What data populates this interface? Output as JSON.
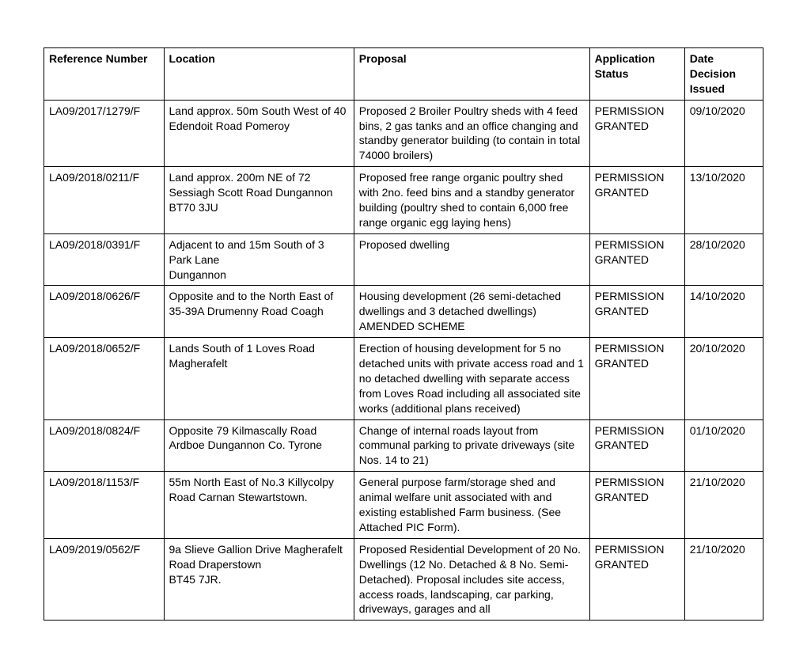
{
  "table": {
    "columns": [
      "Reference Number",
      "Location",
      "Proposal",
      "Application Status",
      "Date Decision Issued"
    ],
    "rows": [
      {
        "ref": "LA09/2017/1279/F",
        "loc": "Land approx. 50m South West of 40 Edendoit Road Pomeroy",
        "prop": "Proposed 2 Broiler Poultry sheds with 4 feed bins, 2 gas tanks and an office changing and standby generator building (to contain in total 74000 broilers)",
        "status": "PERMISSION GRANTED",
        "date": "09/10/2020"
      },
      {
        "ref": "LA09/2018/0211/F",
        "loc": "Land approx. 200m NE of 72 Sessiagh Scott Road Dungannon\nBT70 3JU",
        "prop": "Proposed free range organic poultry shed with 2no. feed bins and a standby generator building (poultry shed to contain 6,000 free range organic egg laying hens)",
        "status": "PERMISSION GRANTED",
        "date": "13/10/2020"
      },
      {
        "ref": "LA09/2018/0391/F",
        "loc": "Adjacent to and 15m South of 3 Park Lane\nDungannon",
        "prop": "Proposed dwelling",
        "status": "PERMISSION GRANTED",
        "date": "28/10/2020"
      },
      {
        "ref": "LA09/2018/0626/F",
        "loc": "Opposite and to the North East of 35-39A Drumenny Road Coagh",
        "prop": "Housing development (26 semi-detached dwellings and 3 detached dwellings) AMENDED SCHEME",
        "status": "PERMISSION GRANTED",
        "date": "14/10/2020"
      },
      {
        "ref": "LA09/2018/0652/F",
        "loc": "Lands South of 1 Loves Road Magherafelt",
        "prop": "Erection of housing development for 5 no detached units with private access road and 1 no detached dwelling with separate access from Loves Road including all associated site works (additional plans received)",
        "status": "PERMISSION GRANTED",
        "date": "20/10/2020"
      },
      {
        "ref": "LA09/2018/0824/F",
        "loc": "Opposite 79 Kilmascally Road Ardboe Dungannon Co. Tyrone",
        "prop": "Change of internal roads layout from communal parking to private driveways (site Nos. 14 to 21)",
        "status": "PERMISSION GRANTED",
        "date": "01/10/2020"
      },
      {
        "ref": "LA09/2018/1153/F",
        "loc": "55m North East of No.3 Killycolpy Road Carnan Stewartstown.",
        "prop": "General purpose farm/storage shed and animal welfare unit associated with and existing established Farm business. (See Attached PIC Form).",
        "status": "PERMISSION GRANTED",
        "date": "21/10/2020"
      },
      {
        "ref": "LA09/2019/0562/F",
        "loc": "9a Slieve Gallion Drive Magherafelt Road Draperstown\nBT45 7JR.",
        "prop": "Proposed Residential Development of 20 No. Dwellings (12 No. Detached & 8 No. Semi- Detached). Proposal includes site access, access roads, landscaping, car parking, driveways, garages and all",
        "status": "PERMISSION GRANTED",
        "date": "21/10/2020"
      }
    ]
  }
}
